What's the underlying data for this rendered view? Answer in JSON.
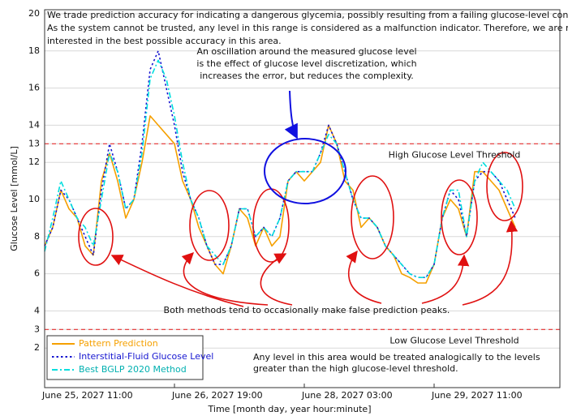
{
  "chart_data": {
    "type": "line",
    "xlabel": "Time [month day, year  hour:minute]",
    "ylabel": "Glucose Level [mmol/L]",
    "xlim": [
      0,
      127
    ],
    "ylim": [
      0,
      20
    ],
    "xticks": [
      {
        "value": 0,
        "label": "June 25, 2027  11:00"
      },
      {
        "value": 32,
        "label": "June 26, 2027  19:00"
      },
      {
        "value": 64,
        "label": "June 28, 2027  03:00"
      },
      {
        "value": 96,
        "label": "June 29, 2027  11:00"
      }
    ],
    "yticks": [
      2,
      3,
      4,
      6,
      8,
      10,
      12,
      13,
      14,
      16,
      18,
      20
    ],
    "grid": true,
    "legend": "lower left",
    "x": [
      0,
      2,
      4,
      6,
      8,
      10,
      12,
      14,
      16,
      18,
      20,
      22,
      24,
      26,
      28,
      30,
      32,
      34,
      36,
      38,
      40,
      42,
      44,
      46,
      48,
      50,
      52,
      54,
      56,
      58,
      60,
      62,
      64,
      66,
      68,
      70,
      72,
      74,
      76,
      78,
      80,
      82,
      84,
      86,
      88,
      90,
      92,
      94,
      96,
      98,
      100,
      102,
      104,
      106,
      108,
      110,
      112,
      114,
      116
    ],
    "series": [
      {
        "name": "Pattern Prediction",
        "color": "#f5a000",
        "style": "solid",
        "values": [
          7.5,
          8.5,
          10.5,
          9.5,
          9,
          7.5,
          7,
          11,
          12.5,
          11,
          9,
          10,
          12,
          14.5,
          14,
          13.5,
          13,
          11,
          10,
          8.5,
          7.5,
          6.5,
          6,
          7.5,
          9.5,
          9,
          7.5,
          8.5,
          7.5,
          8,
          11,
          11.5,
          11,
          11.5,
          12,
          14,
          13,
          11,
          10.5,
          8.5,
          9,
          8.5,
          7.5,
          7,
          6,
          5.8,
          5.5,
          5.5,
          6.5,
          9,
          10,
          9.5,
          8,
          11.5,
          11.5,
          11,
          10.5,
          9.5,
          8.5
        ]
      },
      {
        "name": "Interstitial-Fluid Glucose Level",
        "color": "#1515d0",
        "style": "dotted",
        "values": [
          7.5,
          8.5,
          10.5,
          10,
          9,
          8,
          7,
          10.5,
          13,
          11.5,
          9.5,
          10,
          13,
          17,
          18,
          16,
          14,
          11.5,
          10,
          9,
          7.5,
          6.5,
          6.5,
          7.5,
          9.5,
          9.5,
          8,
          8.5,
          8,
          9,
          11,
          11.5,
          11.5,
          11.5,
          12.5,
          14,
          13,
          11.5,
          10,
          9,
          9,
          8.5,
          7.5,
          7,
          6.5,
          6,
          5.8,
          5.8,
          6.5,
          9,
          10.5,
          10,
          8,
          11,
          11.5,
          11.5,
          11,
          10,
          9
        ]
      },
      {
        "name": "Best BGLP 2020 Method",
        "color": "#00dede",
        "style": "dashdot",
        "values": [
          7.2,
          9,
          11,
          10,
          9,
          8.5,
          7.5,
          10,
          12.5,
          11.5,
          9.5,
          10,
          12.5,
          16.5,
          17.5,
          16.5,
          14.5,
          12,
          10,
          9,
          7.5,
          7,
          6.5,
          7.5,
          9.5,
          9.5,
          8,
          8.5,
          8,
          9,
          11,
          11.5,
          11.5,
          11.5,
          12.5,
          13.5,
          13,
          11.5,
          10,
          9,
          9,
          8.5,
          7.5,
          7,
          6.5,
          6,
          5.8,
          5.8,
          6.5,
          9,
          10.5,
          10.5,
          8,
          11,
          12,
          11.5,
          11,
          10.5,
          9.5
        ]
      }
    ],
    "thresholds": [
      {
        "value": 13,
        "label": "High Glucose Level Threshold",
        "color": "#e83030"
      },
      {
        "value": 3,
        "label": "Low Glucose Level Threshold",
        "color": "#e83030"
      }
    ],
    "annotations": {
      "top": [
        "We trade prediction accuracy for indicating a dangerous glycemia, possibly resulting from a failing glucose-level control.",
        "As the system cannot be trusted, any level in this range is considered as a malfunction indicator. Therefore, we are not",
        "interested in the best possible accuracy in this area."
      ],
      "oscillation": [
        "An oscillation around the measured glucose level",
        "is the effect of glucose level discretization, which",
        "increases the error, but reduces the complexity."
      ],
      "peaks": "Both methods tend to occasionally make false prediction peaks.",
      "bottom": [
        "Any level in this area would be treated analogically to the levels",
        "greater than the high glucose-level threshold."
      ]
    }
  }
}
